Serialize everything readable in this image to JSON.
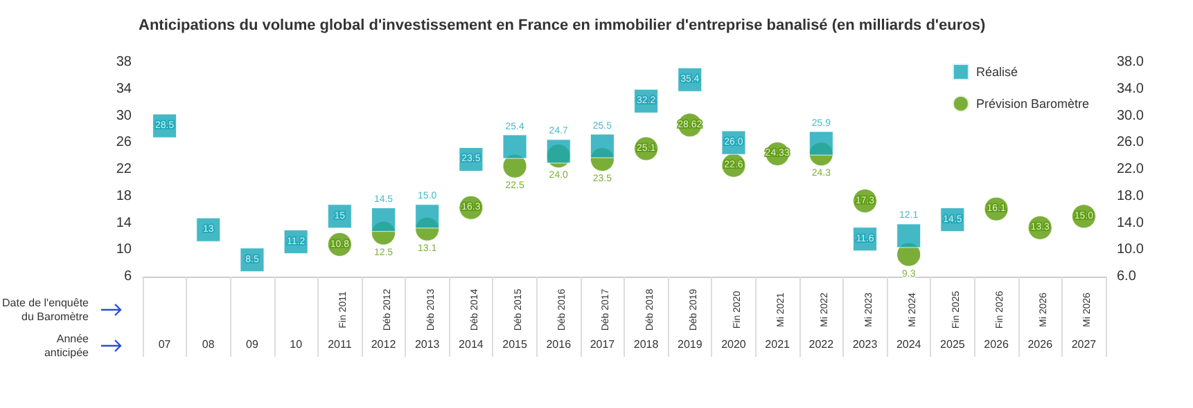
{
  "chart_data": {
    "type": "scatter",
    "title": "Anticipations du volume global d'investissement en France en immobilier d'entreprise banalisé (en milliards d'euros)",
    "categories": [
      "07",
      "08",
      "09",
      "10",
      "2011",
      "2012",
      "2013",
      "2014",
      "2015",
      "2016",
      "2017",
      "2018",
      "2019",
      "2020",
      "2021",
      "2022",
      "2023",
      "2024",
      "2025",
      "2026",
      "2026",
      "2027"
    ],
    "series": [
      {
        "name": "Réalisé",
        "color": "#17a6b8",
        "marker": "square",
        "values": [
          28.5,
          13,
          8.5,
          11.2,
          15,
          14.5,
          15.0,
          23.5,
          25.4,
          24.7,
          25.5,
          32.2,
          35.4,
          26.0,
          null,
          25.9,
          11.6,
          12.1,
          14.5,
          null,
          null,
          null
        ],
        "value_labels": [
          "28.5",
          "13",
          "8.5",
          "11.2",
          "15",
          "14.5",
          "15.0",
          "23.5",
          "25.4",
          "24.7",
          "25.5",
          "32.2",
          "35.4",
          "26.0",
          null,
          "25.9",
          "11.6",
          "12.1",
          "14.5",
          null,
          null,
          null
        ]
      },
      {
        "name": "Prévision Baromètre",
        "color": "#5a9a08",
        "marker": "circle",
        "values": [
          null,
          null,
          null,
          null,
          10.8,
          12.5,
          13.1,
          16.3,
          22.5,
          24.0,
          23.5,
          25.1,
          28.62,
          22.6,
          24.33,
          24.3,
          17.3,
          9.3,
          null,
          16.1,
          13.3,
          15.0
        ],
        "value_labels": [
          null,
          null,
          null,
          null,
          "10.8",
          "12.5",
          "13.1",
          "16.3",
          "22.5",
          "24.0",
          "23.5",
          "25.1",
          "28.62",
          "22.6",
          "24.33",
          "24.3",
          "17.3",
          "9.3",
          null,
          "16.1",
          "13.3",
          "15.0"
        ]
      }
    ],
    "ylim": [
      6,
      38
    ],
    "yticks": [
      6,
      10,
      14,
      18,
      22,
      26,
      30,
      34,
      38
    ],
    "y2lim": [
      6,
      38
    ],
    "y2ticks": [
      {
        "value": 6,
        "label": "6.0"
      },
      {
        "value": 10,
        "label": "10.0"
      },
      {
        "value": 14,
        "label": "14.0"
      },
      {
        "value": 18,
        "label": "18.0"
      },
      {
        "value": 22,
        "label": "22.0"
      },
      {
        "value": 26,
        "label": "26.0"
      },
      {
        "value": 30,
        "label": "30.0"
      },
      {
        "value": 34,
        "label": "34.0"
      },
      {
        "value": 38,
        "label": "38.0"
      }
    ],
    "grid": false,
    "legend": "top right",
    "annotations": [
      "Date de l'enquête\ndu Baromètre",
      "Année\nanticipée",
      "Fin 2011",
      "Déb 2012",
      "Déb 2013",
      "Déb 2014",
      "Déb 2015",
      "Déb 2016",
      "Déb 2017",
      "Déb 2018",
      "Déb 2019",
      "Fin 2020",
      "Mi 2021",
      "Mi 2022",
      "Mi 2023",
      "Mi 2024",
      "Fin 2025",
      "Fin 2026",
      "Mi 2026",
      "Mi 2026"
    ]
  }
}
